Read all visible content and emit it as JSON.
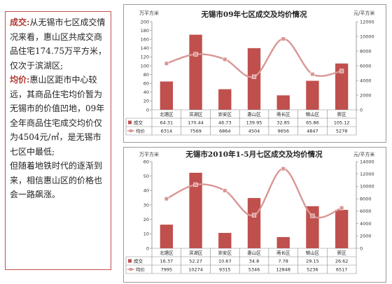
{
  "text_panel": {
    "p1_head": "成交:",
    "p1_body": "从无锡市七区成交情况来看，惠山区共成交商品住宅174.75万平方米，仅次于滨湖区;",
    "p2_head": "均价:",
    "p2_body_a": "惠山区距市中心较远，其商品住宅均价暂为无锡市的价值凹地，09年全年商品住宅成交均价仅为4504元/㎡，是无锡市七区中最低;",
    "p2_body_b": "但随着地铁时代的逐渐到来，相信惠山区的价格也会一路飙涨。"
  },
  "colors": {
    "bar": "#c0504d",
    "line": "#d99694",
    "border": "#c0504d"
  },
  "chart_data": [
    {
      "type": "bar",
      "title": "无锡市09年七区成交及均价情况",
      "ylabel": "万平方米",
      "y2label": "元/平方米",
      "categories": [
        "北塘区",
        "滨湖区",
        "崇安区",
        "惠山区",
        "南长区",
        "锡山区",
        "新区"
      ],
      "ylim": [
        0,
        200
      ],
      "yticks": [
        "0",
        "20",
        "40",
        "60",
        "80",
        "100",
        "120",
        "140",
        "160",
        "180",
        "200"
      ],
      "y2lim": [
        0,
        12000
      ],
      "y2ticks": [
        "0",
        "2000",
        "4000",
        "6000",
        "8000",
        "10000",
        "12000"
      ],
      "grid": false,
      "series": [
        {
          "name": "成交",
          "kind": "bar",
          "values": [
            64.31,
            170.44,
            46.73,
            139.95,
            32.85,
            65.86,
            105.12
          ],
          "labels": [
            "64.31",
            "170.44",
            "46.73",
            "139.95",
            "32.85",
            "65.86",
            "105.12"
          ]
        },
        {
          "name": "均价",
          "kind": "line",
          "axis": "right",
          "values": [
            6314,
            7569,
            6864,
            4504,
            9656,
            4847,
            5278
          ],
          "labels": [
            "6314",
            "7569",
            "6864",
            "4504",
            "9656",
            "4847",
            "5278"
          ]
        }
      ]
    },
    {
      "type": "bar",
      "title": "无锡市2010年1-5月七区成交及均价情况",
      "ylabel": "万平方米",
      "y2label": "元/平方米",
      "categories": [
        "北塘区",
        "滨湖区",
        "崇安区",
        "惠山区",
        "南长区",
        "锡山区",
        "新区"
      ],
      "ylim": [
        0,
        60
      ],
      "yticks": [
        "0",
        "10",
        "20",
        "30",
        "40",
        "50",
        "60"
      ],
      "y2lim": [
        0,
        14000
      ],
      "y2ticks": [
        "0",
        "2000",
        "4000",
        "6000",
        "8000",
        "10000",
        "12000",
        "14000"
      ],
      "grid": false,
      "series": [
        {
          "name": "成交",
          "kind": "bar",
          "values": [
            16.37,
            52.27,
            10.67,
            34.8,
            7.78,
            29.15,
            26.62
          ],
          "labels": [
            "16.37",
            "52.27",
            "10.67",
            "34.8",
            "7.78",
            "29.15",
            "26.62"
          ]
        },
        {
          "name": "均价",
          "kind": "line",
          "axis": "right",
          "values": [
            7995,
            10274,
            9315,
            5346,
            12848,
            5236,
            6517
          ],
          "labels": [
            "7995",
            "10274",
            "9315",
            "5346",
            "12848",
            "5236",
            "6517"
          ]
        }
      ]
    }
  ]
}
